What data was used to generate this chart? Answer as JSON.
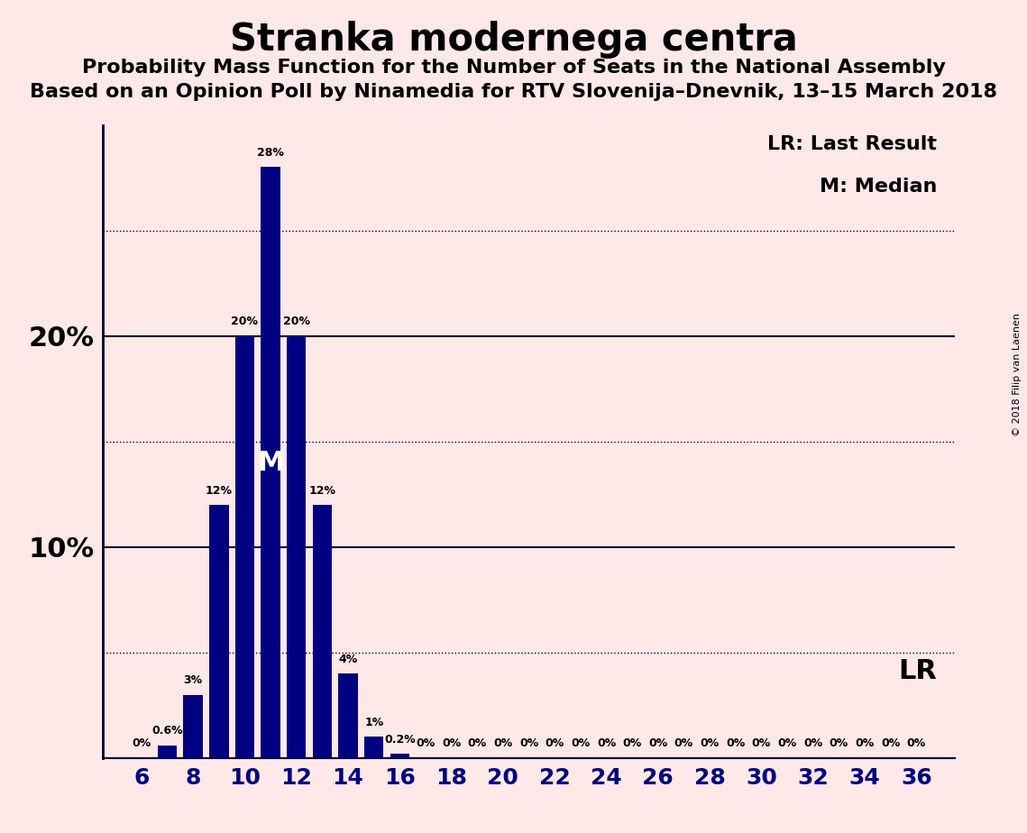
{
  "title": "Stranka modernega centra",
  "subtitle1": "Probability Mass Function for the Number of Seats in the National Assembly",
  "subtitle2": "Based on an Opinion Poll by Ninamedia for RTV Slovenija–Dnevnik, 13–15 March 2018",
  "copyright": "© 2018 Filip van Laenen",
  "seats": [
    6,
    7,
    8,
    9,
    10,
    11,
    12,
    13,
    14,
    15,
    16,
    17,
    18,
    19,
    20,
    21,
    22,
    23,
    24,
    25,
    26,
    27,
    28,
    29,
    30,
    31,
    32,
    33,
    34,
    35,
    36
  ],
  "probabilities": [
    0.0,
    0.6,
    3.0,
    12.0,
    20.0,
    28.0,
    20.0,
    12.0,
    4.0,
    1.0,
    0.2,
    0.0,
    0.0,
    0.0,
    0.0,
    0.0,
    0.0,
    0.0,
    0.0,
    0.0,
    0.0,
    0.0,
    0.0,
    0.0,
    0.0,
    0.0,
    0.0,
    0.0,
    0.0,
    0.0,
    0.0
  ],
  "bar_color": "#000080",
  "background_color": "#ffe8e8",
  "median_seat": 11,
  "lr_seat": 16,
  "ylim": [
    0,
    30
  ],
  "solid_line_ticks": [
    0,
    10,
    20
  ],
  "dotted_line_ticks": [
    5,
    15,
    25
  ],
  "ytick_positions": [
    10,
    20
  ],
  "ytick_labels": [
    "10%",
    "20%"
  ],
  "legend_lr": "LR: Last Result",
  "legend_m": "M: Median",
  "lr_label": "LR",
  "m_label": "M",
  "title_fontsize": 30,
  "subtitle_fontsize": 16,
  "ytick_fontsize": 22,
  "xtick_fontsize": 18
}
